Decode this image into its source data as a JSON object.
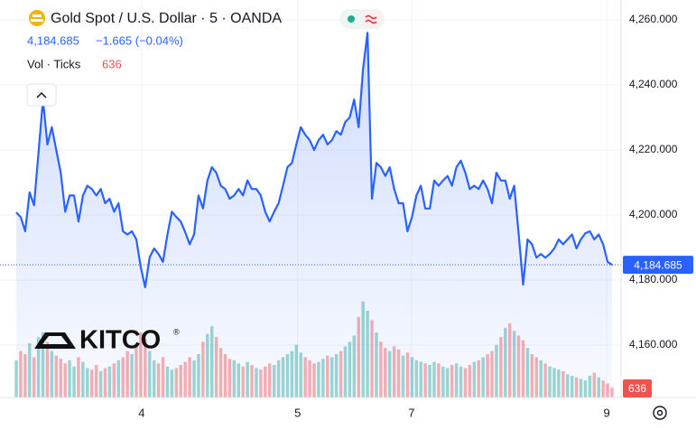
{
  "chart_data": {
    "type": "line",
    "title": "Gold Spot / U.S. Dollar · 5 · OANDA",
    "last_value_label": "4,184.685",
    "change_label": "−1.665 (−0.04%)",
    "volume_label": "Vol · Ticks",
    "logo": "KITCO",
    "logo_mark": "®",
    "color": "#2962ff",
    "values": [
      4200.8,
      4199.4,
      4195,
      4207,
      4203,
      4219,
      4235.5,
      4221.7,
      4227,
      4220,
      4213,
      4201,
      4206,
      4206,
      4198,
      4206,
      4209,
      4208,
      4206,
      4208,
      4203.6,
      4205,
      4201,
      4203.6,
      4195,
      4194,
      4195,
      4192.5,
      4184,
      4177.8,
      4187,
      4189.7,
      4188,
      4185.6,
      4194,
      4201,
      4199.4,
      4198,
      4194.7,
      4191,
      4194,
      4206,
      4202,
      4210.6,
      4214.7,
      4213,
      4209,
      4208,
      4205,
      4206,
      4208,
      4206,
      4210.6,
      4208,
      4208,
      4206,
      4201,
      4198,
      4201,
      4203.6,
      4209,
      4214.7,
      4216,
      4221.7,
      4227,
      4224.7,
      4223,
      4220,
      4223,
      4224.7,
      4221.7,
      4223,
      4225.8,
      4224.7,
      4228.6,
      4230,
      4235.5,
      4227,
      4245,
      4256,
      4205,
      4216,
      4214.7,
      4212,
      4214.7,
      4208,
      4203.6,
      4203.6,
      4195,
      4199.4,
      4206,
      4209,
      4202,
      4202,
      4210.6,
      4209,
      4210.6,
      4212,
      4209,
      4214.7,
      4216.7,
      4213,
      4208,
      4209,
      4208,
      4210.6,
      4208,
      4203.6,
      4213,
      4210.6,
      4210.6,
      4205,
      4209,
      4194,
      4178.6,
      4192.5,
      4191,
      4186.9,
      4188,
      4186.9,
      4188,
      4189.7,
      4192.5,
      4191,
      4192.5,
      4194,
      4189.7,
      4192.5,
      4194.4,
      4195,
      4192.5,
      4194,
      4191,
      4185.6,
      4184.685
    ],
    "xlim": [
      0,
      134
    ],
    "xticks": [
      {
        "value": 28.2,
        "label": "4"
      },
      {
        "value": 63.3,
        "label": "5"
      },
      {
        "value": 88.9,
        "label": "7"
      },
      {
        "value": 132.8,
        "label": "9"
      }
    ],
    "ylim": [
      4143.9,
      4266.1
    ],
    "yticks": [
      {
        "value": 4160,
        "label": "4,160.000"
      },
      {
        "value": 4180,
        "label": "4,180.000"
      },
      {
        "value": 4200,
        "label": "4,200.000"
      },
      {
        "value": 4220,
        "label": "4,220.000"
      },
      {
        "value": 4240,
        "label": "4,240.000"
      },
      {
        "value": 4260,
        "label": "4,260.000"
      }
    ],
    "grid": true,
    "volume": {
      "values": [
        2400,
        3000,
        2800,
        3500,
        2600,
        3900,
        4200,
        3600,
        3000,
        2700,
        2500,
        2200,
        2400,
        2000,
        2600,
        2300,
        1900,
        1800,
        2100,
        1700,
        1900,
        2000,
        2200,
        2400,
        2600,
        3000,
        2800,
        3300,
        4200,
        3800,
        3000,
        2400,
        2200,
        2600,
        2000,
        1800,
        1900,
        2100,
        2300,
        2600,
        2400,
        2800,
        3600,
        4100,
        4600,
        3900,
        3200,
        2800,
        2500,
        2400,
        2200,
        2000,
        2300,
        2100,
        1900,
        1800,
        2000,
        2200,
        2100,
        2400,
        2600,
        2800,
        3000,
        3400,
        2900,
        2600,
        2400,
        2200,
        2300,
        2500,
        2700,
        2600,
        2800,
        3000,
        3300,
        3600,
        4000,
        5200,
        6200,
        5600,
        5000,
        4200,
        3600,
        3200,
        3000,
        3300,
        3100,
        2700,
        2900,
        2600,
        2400,
        2300,
        2200,
        2100,
        2300,
        2200,
        2000,
        1900,
        2100,
        2200,
        2000,
        1900,
        2100,
        2300,
        2400,
        2600,
        2800,
        3000,
        3400,
        3900,
        4500,
        4800,
        4300,
        4000,
        3700,
        3200,
        2800,
        2600,
        2400,
        2200,
        2000,
        1900,
        1800,
        1700,
        1500,
        1400,
        1300,
        1200,
        1100,
        1400,
        1600,
        1300,
        1100,
        900,
        636
      ],
      "ylim": [
        0,
        7000
      ],
      "up_color": "#26a69a",
      "down_color": "#ef5350"
    }
  }
}
